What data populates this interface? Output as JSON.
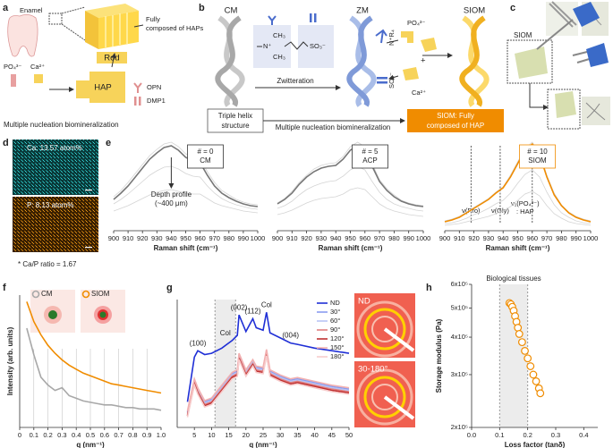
{
  "panels": {
    "a": {
      "label": "a",
      "enamel": "Enamel",
      "rod": "Rod",
      "haps": [
        "Fully",
        "composed of HAPs"
      ],
      "po4": "PO₄³⁻",
      "ca": "Ca²⁺",
      "hap": "HAP",
      "opn": "OPN",
      "dmp1": "DMP1",
      "caption": "Multiple nucleation biomineralization"
    },
    "b": {
      "label": "b",
      "cm": "CM",
      "zm": "ZM",
      "siom": "SIOM",
      "ch3a": "CH₃",
      "ch3b": "CH₃",
      "n": "N⁺",
      "so3": "SO₃⁻",
      "zwitteration": "Zwitteration",
      "nr4": "N⁺R₄",
      "so3b": "SO₃⁻",
      "po4": "PO₄³⁻",
      "ca": "Ca²⁺",
      "plus": "+",
      "triple": [
        "Triple helix",
        "structure"
      ],
      "caption": "Multiple nucleation biomineralization",
      "result": [
        "SIOM: Fully",
        "composed of HAP"
      ]
    },
    "c": {
      "label": "c",
      "siom": "SIOM"
    },
    "d": {
      "label": "d",
      "ca": "Ca: 13.57 atom%",
      "p": "P: 8.13 atom%",
      "ratio": "* Ca/P ratio = 1.67"
    }
  },
  "chart_data": [
    {
      "type": "line",
      "panel": "e",
      "label_lines": [
        "# = 0",
        "CM"
      ],
      "note_color": "#333",
      "xlabel": "Raman shift (cm⁻¹)",
      "annotation": {
        "lines": [
          "Depth profile",
          "(~400 μm)"
        ],
        "x": 940
      },
      "x": [
        900,
        905,
        910,
        915,
        920,
        925,
        930,
        935,
        940,
        945,
        950,
        955,
        960,
        965,
        970,
        975,
        980,
        985,
        990,
        995,
        1000
      ],
      "xlim": [
        900,
        1000
      ],
      "xticks": [
        900,
        910,
        920,
        930,
        940,
        950,
        960,
        970,
        980,
        990,
        1000
      ],
      "ylim": [
        0,
        1
      ],
      "series": [
        {
          "color": "#d4d4d4",
          "values": [
            0.38,
            0.45,
            0.54,
            0.64,
            0.74,
            0.84,
            0.91,
            0.97,
            0.99,
            0.94,
            0.86,
            0.82,
            0.8,
            0.66,
            0.54,
            0.45,
            0.4,
            0.35,
            0.32,
            0.3,
            0.29
          ]
        },
        {
          "color": "#d4d4d4",
          "values": [
            0.3,
            0.35,
            0.41,
            0.48,
            0.55,
            0.62,
            0.67,
            0.71,
            0.72,
            0.69,
            0.64,
            0.61,
            0.6,
            0.5,
            0.42,
            0.36,
            0.32,
            0.29,
            0.27,
            0.25,
            0.24
          ]
        },
        {
          "color": "#d4d4d4",
          "values": [
            0.22,
            0.25,
            0.28,
            0.32,
            0.36,
            0.4,
            0.43,
            0.45,
            0.46,
            0.44,
            0.42,
            0.41,
            0.41,
            0.36,
            0.31,
            0.28,
            0.26,
            0.24,
            0.22,
            0.21,
            0.2
          ]
        },
        {
          "color": "#777777",
          "values": [
            0.35,
            0.42,
            0.5,
            0.6,
            0.7,
            0.8,
            0.87,
            0.93,
            0.95,
            0.9,
            0.82,
            0.78,
            0.76,
            0.62,
            0.5,
            0.42,
            0.37,
            0.33,
            0.3,
            0.28,
            0.27
          ]
        }
      ]
    },
    {
      "type": "line",
      "label_lines": [
        "# = 5",
        "ACP"
      ],
      "note_color": "#333",
      "xlabel": "Raman shift (cm⁻¹)",
      "x": [
        900,
        905,
        910,
        915,
        920,
        925,
        930,
        935,
        940,
        945,
        950,
        955,
        960,
        965,
        970,
        975,
        980,
        985,
        990,
        995,
        1000
      ],
      "xlim": [
        900,
        1000
      ],
      "xticks": [
        900,
        910,
        920,
        930,
        940,
        950,
        960,
        970,
        980,
        990,
        1000
      ],
      "ylim": [
        0,
        1
      ],
      "series": [
        {
          "color": "#d4d4d4",
          "values": [
            0.31,
            0.36,
            0.44,
            0.54,
            0.62,
            0.69,
            0.73,
            0.75,
            0.76,
            0.83,
            0.94,
            0.99,
            0.94,
            0.75,
            0.57,
            0.47,
            0.4,
            0.34,
            0.31,
            0.29,
            0.28
          ]
        },
        {
          "color": "#d4d4d4",
          "values": [
            0.25,
            0.28,
            0.33,
            0.4,
            0.46,
            0.5,
            0.53,
            0.55,
            0.56,
            0.61,
            0.68,
            0.72,
            0.68,
            0.55,
            0.43,
            0.35,
            0.3,
            0.27,
            0.25,
            0.23,
            0.22
          ]
        },
        {
          "color": "#d4d4d4",
          "values": [
            0.18,
            0.2,
            0.23,
            0.27,
            0.31,
            0.34,
            0.36,
            0.37,
            0.38,
            0.41,
            0.46,
            0.48,
            0.46,
            0.38,
            0.3,
            0.25,
            0.22,
            0.2,
            0.18,
            0.17,
            0.16
          ]
        },
        {
          "color": "#777777",
          "values": [
            0.3,
            0.35,
            0.42,
            0.52,
            0.6,
            0.66,
            0.7,
            0.72,
            0.73,
            0.8,
            0.9,
            0.95,
            0.9,
            0.72,
            0.55,
            0.45,
            0.38,
            0.33,
            0.3,
            0.28,
            0.27
          ]
        }
      ]
    },
    {
      "type": "line",
      "label_lines": [
        "# = 10",
        "SIOM"
      ],
      "note_color": "#f08c00",
      "xlabel": "Raman shift (cm⁻¹)",
      "markers": [
        {
          "x": 918,
          "lines": [
            "ν(Pro)"
          ]
        },
        {
          "x": 938,
          "lines": [
            "ν(Gly)"
          ]
        },
        {
          "x": 960,
          "lines": [
            "ν₁(PO₄³⁻)",
            ": HAP"
          ]
        }
      ],
      "x": [
        900,
        905,
        910,
        915,
        920,
        925,
        930,
        935,
        940,
        945,
        950,
        955,
        960,
        965,
        970,
        975,
        980,
        985,
        990,
        995,
        1000
      ],
      "xlim": [
        900,
        1000
      ],
      "xticks": [
        900,
        910,
        920,
        930,
        940,
        950,
        960,
        970,
        980,
        990,
        1000
      ],
      "ylim": [
        0,
        1
      ],
      "series": [
        {
          "color": "#d4d4d4",
          "values": [
            0.11,
            0.13,
            0.16,
            0.21,
            0.26,
            0.31,
            0.36,
            0.43,
            0.49,
            0.62,
            0.77,
            0.92,
            0.99,
            0.87,
            0.62,
            0.42,
            0.29,
            0.21,
            0.16,
            0.13,
            0.11
          ]
        },
        {
          "color": "#d4d4d4",
          "values": [
            0.08,
            0.09,
            0.11,
            0.14,
            0.18,
            0.21,
            0.25,
            0.3,
            0.34,
            0.42,
            0.53,
            0.63,
            0.68,
            0.6,
            0.43,
            0.29,
            0.2,
            0.15,
            0.11,
            0.09,
            0.08
          ]
        },
        {
          "color": "#d4d4d4",
          "values": [
            0.06,
            0.07,
            0.08,
            0.1,
            0.12,
            0.14,
            0.16,
            0.19,
            0.22,
            0.27,
            0.34,
            0.41,
            0.44,
            0.39,
            0.28,
            0.19,
            0.14,
            0.1,
            0.08,
            0.07,
            0.06
          ]
        },
        {
          "color": "#f08c00",
          "values": [
            0.1,
            0.12,
            0.15,
            0.2,
            0.25,
            0.3,
            0.35,
            0.42,
            0.48,
            0.6,
            0.75,
            0.9,
            0.97,
            0.85,
            0.6,
            0.4,
            0.28,
            0.2,
            0.15,
            0.12,
            0.1
          ]
        }
      ]
    },
    {
      "type": "line",
      "panel": "f",
      "xlabel": "q (nm⁻¹)",
      "ylabel": "Intensity (arb. units)",
      "grid": true,
      "x": [
        0.05,
        0.1,
        0.15,
        0.2,
        0.25,
        0.3,
        0.35,
        0.4,
        0.45,
        0.5,
        0.55,
        0.6,
        0.65,
        0.7,
        0.75,
        0.8,
        0.85,
        0.9,
        0.95,
        1
      ],
      "xlim": [
        0,
        1
      ],
      "xticks": [
        0,
        0.1,
        0.2,
        0.3,
        0.4,
        0.5,
        0.6,
        0.7,
        0.8,
        0.9,
        {
          "value": 1,
          "label": "1.0"
        }
      ],
      "ylim": [
        0,
        1
      ],
      "series": [
        {
          "name": "CM",
          "color": "#a8a8a8",
          "values": [
            0.75,
            0.55,
            0.38,
            0.32,
            0.28,
            0.3,
            0.24,
            0.22,
            0.2,
            0.19,
            0.18,
            0.17,
            0.17,
            0.16,
            0.15,
            0.15,
            0.14,
            0.14,
            0.14,
            0.13
          ]
        },
        {
          "name": "SIOM",
          "color": "#f08c00",
          "values": [
            0.95,
            0.8,
            0.7,
            0.62,
            0.56,
            0.51,
            0.47,
            0.44,
            0.41,
            0.39,
            0.37,
            0.35,
            0.33,
            0.32,
            0.31,
            0.3,
            0.29,
            0.28,
            0.27,
            0.26
          ]
        }
      ]
    },
    {
      "type": "line",
      "panel": "g",
      "xlabel": "q (nm⁻¹)",
      "band": [
        11,
        17
      ],
      "insets": [
        "ND",
        "30-180°"
      ],
      "peaks": [
        {
          "x": 6,
          "label": "(100)"
        },
        {
          "x": 14,
          "label": "Col"
        },
        {
          "x": 18,
          "label": "(002)"
        },
        {
          "x": 22,
          "label": "(112)"
        },
        {
          "x": 26,
          "label": "Col"
        },
        {
          "x": 33,
          "label": "(004)"
        }
      ],
      "x": [
        3,
        5,
        6,
        8,
        10,
        13,
        16,
        17.5,
        18,
        20,
        22,
        23,
        25,
        26,
        27,
        30,
        33,
        35,
        40,
        45,
        50
      ],
      "xlim": [
        0,
        50
      ],
      "xticks": [
        5,
        10,
        15,
        20,
        25,
        30,
        35,
        40,
        45,
        50
      ],
      "ylim": [
        0,
        1
      ],
      "series": [
        {
          "name": "ND",
          "color": "#1f2fd6",
          "values": [
            0.2,
            0.55,
            0.6,
            0.57,
            0.58,
            0.62,
            0.68,
            0.72,
            0.88,
            0.75,
            0.85,
            0.78,
            0.76,
            0.9,
            0.74,
            0.7,
            0.66,
            0.65,
            0.62,
            0.6,
            0.58
          ]
        },
        {
          "name": "30°",
          "color": "#8a9cf0",
          "values": [
            0.12,
            0.37,
            0.3,
            0.2,
            0.22,
            0.32,
            0.42,
            0.44,
            0.57,
            0.44,
            0.52,
            0.47,
            0.46,
            0.6,
            0.44,
            0.4,
            0.37,
            0.38,
            0.35,
            0.32,
            0.3
          ]
        },
        {
          "name": "60°",
          "color": "#b9c4f5",
          "values": [
            0.11,
            0.36,
            0.29,
            0.19,
            0.21,
            0.31,
            0.41,
            0.43,
            0.56,
            0.43,
            0.51,
            0.46,
            0.45,
            0.59,
            0.43,
            0.39,
            0.36,
            0.37,
            0.34,
            0.31,
            0.29
          ]
        },
        {
          "name": "90°",
          "color": "#e08080",
          "values": [
            0.1,
            0.35,
            0.28,
            0.18,
            0.2,
            0.3,
            0.4,
            0.42,
            0.55,
            0.42,
            0.5,
            0.45,
            0.44,
            0.58,
            0.42,
            0.38,
            0.35,
            0.36,
            0.33,
            0.3,
            0.28
          ]
        },
        {
          "name": "120°",
          "color": "#c03030",
          "values": [
            0.09,
            0.34,
            0.27,
            0.17,
            0.19,
            0.29,
            0.39,
            0.41,
            0.54,
            0.41,
            0.49,
            0.44,
            0.43,
            0.57,
            0.41,
            0.37,
            0.34,
            0.35,
            0.32,
            0.29,
            0.27
          ]
        },
        {
          "name": "150°",
          "color": "#f2b0b0",
          "values": [
            0.13,
            0.38,
            0.31,
            0.21,
            0.23,
            0.33,
            0.43,
            0.45,
            0.58,
            0.45,
            0.53,
            0.48,
            0.47,
            0.61,
            0.45,
            0.41,
            0.38,
            0.39,
            0.36,
            0.33,
            0.31
          ]
        },
        {
          "name": "180°",
          "color": "#f7cccc",
          "values": [
            0.08,
            0.33,
            0.26,
            0.16,
            0.18,
            0.28,
            0.38,
            0.4,
            0.53,
            0.4,
            0.48,
            0.43,
            0.42,
            0.56,
            0.4,
            0.36,
            0.33,
            0.34,
            0.31,
            0.28,
            0.26
          ]
        }
      ]
    },
    {
      "type": "scatter",
      "panel": "h",
      "xlabel": "Loss factor (tanδ)",
      "ylabel": "Storage modulus (Pa)",
      "log_y": true,
      "color": "#f08c00",
      "band": [
        0.1,
        0.2
      ],
      "band_label": "Biological tissues",
      "x": [
        0.135,
        0.14,
        0.145,
        0.15,
        0.155,
        0.16,
        0.165,
        0.17,
        0.18,
        0.19,
        0.2,
        0.21,
        0.22,
        0.23,
        0.24,
        0.245
      ],
      "y": [
        520000,
        515000,
        505000,
        490000,
        470000,
        450000,
        430000,
        410000,
        385000,
        360000,
        340000,
        320000,
        300000,
        285000,
        270000,
        260000
      ],
      "xlim": [
        0,
        0.45
      ],
      "xticks": [
        {
          "value": 0,
          "label": "0.0"
        },
        0.1,
        0.2,
        0.3,
        0.4
      ],
      "ylim": [
        200000,
        600000
      ],
      "yticks": [
        {
          "value": 200000,
          "label": "2x10⁵"
        },
        {
          "value": 300000,
          "label": "3x10⁵"
        },
        {
          "value": 400000,
          "label": "4x10⁵"
        },
        {
          "value": 500000,
          "label": "5x10⁵"
        },
        {
          "value": 600000,
          "label": "6x10⁵"
        }
      ]
    }
  ]
}
